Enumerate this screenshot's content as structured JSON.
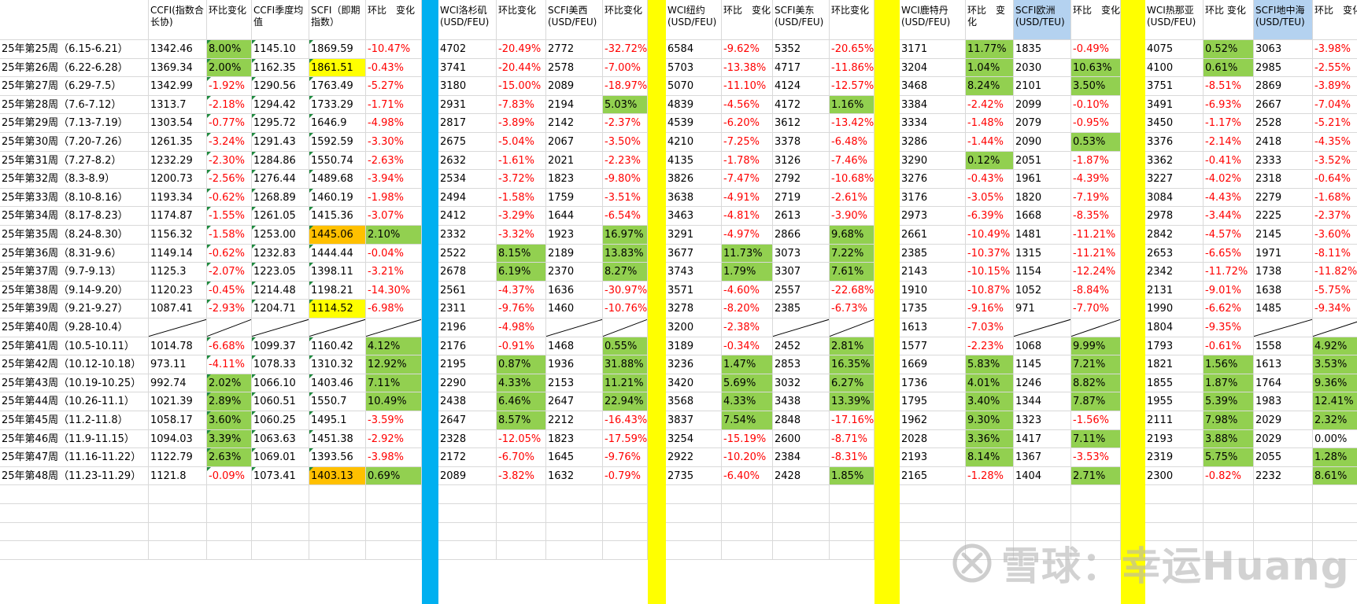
{
  "columns": [
    {
      "label": "",
      "w": 189
    },
    {
      "label": "CCFI(指数合长协)",
      "w": 74
    },
    {
      "label": "环比变化",
      "w": 57
    },
    {
      "label": "CCFI季度均值",
      "w": 73
    },
    {
      "label": "SCFI（即期指数）",
      "w": 72
    },
    {
      "label": "环比　变化",
      "w": 71
    },
    {
      "sep": "#00b0f0",
      "w": 21
    },
    {
      "label": "WCI洛杉矶(USD/FEU)",
      "w": 74
    },
    {
      "label": "环比变化",
      "w": 63
    },
    {
      "label": "SCFI美西(USD/FEU)",
      "w": 72
    },
    {
      "label": "环比变化",
      "w": 57
    },
    {
      "sep": "#ffff00",
      "w": 23
    },
    {
      "label": "WCI纽约(USD/FEU)",
      "w": 71
    },
    {
      "label": "环比　变化",
      "w": 65
    },
    {
      "label": "SCFI美东(USD/FEU)",
      "w": 72
    },
    {
      "label": "环比变化",
      "w": 57
    },
    {
      "sep": "#ffff00",
      "w": 32
    },
    {
      "label": "WCI鹿特丹(USD/FEU)",
      "w": 84
    },
    {
      "label": "环比　变化",
      "w": 61
    },
    {
      "label": "SCFI欧洲(USD/TEU)",
      "w": 73,
      "bg": "lblue"
    },
    {
      "label": "环比　变化",
      "w": 63
    },
    {
      "sep": "#ffff00",
      "w": 31
    },
    {
      "label": "WCI热那亚(USD/FEU)",
      "w": 74
    },
    {
      "label": "环比 变化",
      "w": 64
    },
    {
      "label": "SCFI地中海(USD/TEU)",
      "w": 75,
      "bg": "lblue"
    },
    {
      "label": "环比　变化",
      "w": 66
    }
  ],
  "rows": [
    {
      "week": "25年第25周（6.15-6.21）",
      "vals": [
        "1342.46",
        "8.00%",
        "1145.10",
        "1869.59",
        "-10.47%",
        "4702",
        "-20.49%",
        "2772",
        "-32.72%",
        "6584",
        "-9.62%",
        "5352",
        "-20.65%",
        "3171",
        "11.77%",
        "1835",
        "-0.49%",
        "4075",
        "0.52%",
        "3063",
        "-3.98%"
      ]
    },
    {
      "week": "25年第26周（6.22-6.28）",
      "vals": [
        "1369.34",
        "2.00%",
        "1162.35",
        "1861.51",
        "-0.43%",
        "3741",
        "-20.44%",
        "2578",
        "-7.00%",
        "5703",
        "-13.38%",
        "4717",
        "-11.86%",
        "3204",
        "1.04%",
        "2030",
        "10.63%",
        "4100",
        "0.61%",
        "2985",
        "-2.55%"
      ]
    },
    {
      "week": "25年第27周（6.29-7.5）",
      "vals": [
        "1342.99",
        "-1.92%",
        "1290.56",
        "1763.49",
        "-5.27%",
        "3180",
        "-15.00%",
        "2089",
        "-18.97%",
        "5070",
        "-11.10%",
        "4124",
        "-12.57%",
        "3468",
        "8.24%",
        "2101",
        "3.50%",
        "3751",
        "-8.51%",
        "2869",
        "-3.89%"
      ]
    },
    {
      "week": "25年第28周（7.6-7.12）",
      "vals": [
        "1313.7",
        "-2.18%",
        "1294.42",
        "1733.29",
        "-1.71%",
        "2931",
        "-7.83%",
        "2194",
        "5.03%",
        "4839",
        "-4.56%",
        "4172",
        "1.16%",
        "3384",
        "-2.42%",
        "2099",
        "-0.10%",
        "3491",
        "-6.93%",
        "2667",
        "-7.04%"
      ]
    },
    {
      "week": "25年第29周（7.13-7.19）",
      "vals": [
        "1303.54",
        "-0.77%",
        "1295.72",
        "1646.9",
        "-4.98%",
        "2817",
        "-3.89%",
        "2142",
        "-2.37%",
        "4539",
        "-6.20%",
        "3612",
        "-13.42%",
        "3334",
        "-1.48%",
        "2079",
        "-0.95%",
        "3450",
        "-1.17%",
        "2528",
        "-5.21%"
      ]
    },
    {
      "week": "25年第30周（7.20-7.26）",
      "vals": [
        "1261.35",
        "-3.24%",
        "1291.43",
        "1592.59",
        "-3.30%",
        "2675",
        "-5.04%",
        "2067",
        "-3.50%",
        "4210",
        "-7.25%",
        "3378",
        "-6.48%",
        "3286",
        "-1.44%",
        "2090",
        "0.53%",
        "3376",
        "-2.14%",
        "2418",
        "-4.35%"
      ]
    },
    {
      "week": "25年第31周（7.27-8.2）",
      "vals": [
        "1232.29",
        "-2.30%",
        "1284.86",
        "1550.74",
        "-2.63%",
        "2632",
        "-1.61%",
        "2021",
        "-2.23%",
        "4135",
        "-1.78%",
        "3126",
        "-7.46%",
        "3290",
        "0.12%",
        "2051",
        "-1.87%",
        "3362",
        "-0.41%",
        "2333",
        "-3.52%"
      ]
    },
    {
      "week": "25年第32周（8.3-8.9）",
      "vals": [
        "1200.73",
        "-2.56%",
        "1276.44",
        "1489.68",
        "-3.94%",
        "2534",
        "-3.72%",
        "1823",
        "-9.80%",
        "3826",
        "-7.47%",
        "2792",
        "-10.68%",
        "3276",
        "-0.43%",
        "1961",
        "-4.39%",
        "3227",
        "-4.02%",
        "2318",
        "-0.64%"
      ]
    },
    {
      "week": "25年第33周（8.10-8.16）",
      "vals": [
        "1193.34",
        "-0.62%",
        "1268.89",
        "1460.19",
        "-1.98%",
        "2494",
        "-1.58%",
        "1759",
        "-3.51%",
        "3638",
        "-4.91%",
        "2719",
        "-2.61%",
        "3176",
        "-3.05%",
        "1820",
        "-7.19%",
        "3084",
        "-4.43%",
        "2279",
        "-1.68%"
      ]
    },
    {
      "week": "25年第34周（8.17-8.23）",
      "vals": [
        "1174.87",
        "-1.55%",
        "1261.05",
        "1415.36",
        "-3.07%",
        "2412",
        "-3.29%",
        "1644",
        "-6.54%",
        "3463",
        "-4.81%",
        "2613",
        "-3.90%",
        "2973",
        "-6.39%",
        "1668",
        "-8.35%",
        "2978",
        "-3.44%",
        "2225",
        "-2.37%"
      ]
    },
    {
      "week": "25年第35周（8.24-8.30）",
      "vals": [
        "1156.32",
        "-1.58%",
        "1253.00",
        "1445.06",
        "2.10%",
        "2332",
        "-3.32%",
        "1923",
        "16.97%",
        "3291",
        "-4.97%",
        "2866",
        "9.68%",
        "2661",
        "-10.49%",
        "1481",
        "-11.21%",
        "2842",
        "-4.57%",
        "2145",
        "-3.60%"
      ]
    },
    {
      "week": "25年第36周（8.31-9.6）",
      "vals": [
        "1149.14",
        "-0.62%",
        "1232.83",
        "1444.44",
        "-0.04%",
        "2522",
        "8.15%",
        "2189",
        "13.83%",
        "3677",
        "11.73%",
        "3073",
        "7.22%",
        "2385",
        "-10.37%",
        "1315",
        "-11.21%",
        "2653",
        "-6.65%",
        "1971",
        "-8.11%"
      ]
    },
    {
      "week": "25年第37周（9.7-9.13）",
      "vals": [
        "1125.3",
        "-2.07%",
        "1223.05",
        "1398.11",
        "-3.21%",
        "2678",
        "6.19%",
        "2370",
        "8.27%",
        "3743",
        "1.79%",
        "3307",
        "7.61%",
        "2143",
        "-10.15%",
        "1154",
        "-12.24%",
        "2342",
        "-11.72%",
        "1738",
        "-11.82%"
      ]
    },
    {
      "week": "25年第38周（9.14-9.20）",
      "vals": [
        "1120.23",
        "-0.45%",
        "1214.48",
        "1198.21",
        "-14.30%",
        "2561",
        "-4.37%",
        "1636",
        "-30.97%",
        "3571",
        "-4.60%",
        "2557",
        "-22.68%",
        "1910",
        "-10.87%",
        "1052",
        "-8.84%",
        "2131",
        "-9.01%",
        "1638",
        "-5.75%"
      ]
    },
    {
      "week": "25年第39周（9.21-9.27）",
      "vals": [
        "1087.41",
        "-2.93%",
        "1204.71",
        "1114.52",
        "-6.98%",
        "2311",
        "-9.76%",
        "1460",
        "-10.76%",
        "3278",
        "-8.20%",
        "2385",
        "-6.73%",
        "1735",
        "-9.16%",
        "971",
        "-7.70%",
        "1990",
        "-6.62%",
        "1485",
        "-9.34%"
      ]
    },
    {
      "week": "25年第40周（9.28-10.4）",
      "vals": [
        "",
        "",
        "",
        "",
        "",
        "2196",
        "-4.98%",
        "",
        "",
        "3200",
        "-2.38%",
        "",
        "",
        "1613",
        "-7.03%",
        "",
        "",
        "1804",
        "-9.35%",
        "",
        ""
      ]
    },
    {
      "week": "25年第41周（10.5-10.11）",
      "vals": [
        "1014.78",
        "-6.68%",
        "1099.37",
        "1160.42",
        "4.12%",
        "2176",
        "-0.91%",
        "1468",
        "0.55%",
        "3189",
        "-0.34%",
        "2452",
        "2.81%",
        "1577",
        "-2.23%",
        "1068",
        "9.99%",
        "1793",
        "-0.61%",
        "1558",
        "4.92%"
      ]
    },
    {
      "week": "25年第42周（10.12-10.18）",
      "vals": [
        "973.11",
        "-4.11%",
        "1078.33",
        "1310.32",
        "12.92%",
        "2195",
        "0.87%",
        "1936",
        "31.88%",
        "3236",
        "1.47%",
        "2853",
        "16.35%",
        "1669",
        "5.83%",
        "1145",
        "7.21%",
        "1821",
        "1.56%",
        "1613",
        "3.53%"
      ]
    },
    {
      "week": "25年第43周（10.19-10.25）",
      "vals": [
        "992.74",
        "2.02%",
        "1066.10",
        "1403.46",
        "7.11%",
        "2290",
        "4.33%",
        "2153",
        "11.21%",
        "3420",
        "5.69%",
        "3032",
        "6.27%",
        "1736",
        "4.01%",
        "1246",
        "8.82%",
        "1855",
        "1.87%",
        "1764",
        "9.36%"
      ]
    },
    {
      "week": "25年第44周（10.26-11.1）",
      "vals": [
        "1021.39",
        "2.89%",
        "1060.51",
        "1550.7",
        "10.49%",
        "2438",
        "6.46%",
        "2647",
        "22.94%",
        "3568",
        "4.33%",
        "3438",
        "13.39%",
        "1795",
        "3.40%",
        "1344",
        "7.87%",
        "1955",
        "5.39%",
        "1983",
        "12.41%"
      ]
    },
    {
      "week": "25年第45周（11.2-11.8）",
      "vals": [
        "1058.17",
        "3.60%",
        "1060.25",
        "1495.1",
        "-3.59%",
        "2647",
        "8.57%",
        "2212",
        "-16.43%",
        "3837",
        "7.54%",
        "2848",
        "-17.16%",
        "1962",
        "9.30%",
        "1323",
        "-1.56%",
        "2111",
        "7.98%",
        "2029",
        "2.32%"
      ]
    },
    {
      "week": "25年第46周（11.9-11.15）",
      "vals": [
        "1094.03",
        "3.39%",
        "1063.63",
        "1451.38",
        "-2.92%",
        "2328",
        "-12.05%",
        "1823",
        "-17.59%",
        "3254",
        "-15.19%",
        "2600",
        "-8.71%",
        "2028",
        "3.36%",
        "1417",
        "7.11%",
        "2193",
        "3.88%",
        "2029",
        "0.00%"
      ]
    },
    {
      "week": "25年第47周（11.16-11.22）",
      "vals": [
        "1122.79",
        "2.63%",
        "1069.01",
        "1393.56",
        "-3.98%",
        "2172",
        "-6.70%",
        "1645",
        "-9.76%",
        "2922",
        "-10.20%",
        "2384",
        "-8.31%",
        "2193",
        "8.14%",
        "1367",
        "-3.53%",
        "2319",
        "5.75%",
        "2055",
        "1.28%"
      ]
    },
    {
      "week": "25年第48周（11.23-11.29）",
      "vals": [
        "1121.8",
        "-0.09%",
        "1073.41",
        "1403.13",
        "0.69%",
        "2089",
        "-3.82%",
        "1632",
        "-0.79%",
        "2735",
        "-6.40%",
        "2428",
        "1.85%",
        "2165",
        "-1.28%",
        "1404",
        "2.71%",
        "2300",
        "-0.82%",
        "2232",
        "8.61%"
      ]
    }
  ],
  "colors": {
    "positive": "#92d050",
    "negative_text": "#ff0000",
    "blue_separator": "#00b0f0",
    "yellow_separator": "#ffff00",
    "highlight_yellow": "#ffff00",
    "highlight_orange": "#ffc000",
    "header_blue": "#b4d2f0"
  },
  "highlights": [
    {
      "row": 1,
      "col": 3,
      "bg": "yellow"
    },
    {
      "row": 10,
      "col": 3,
      "bg": "orange"
    },
    {
      "row": 14,
      "col": 3,
      "bg": "yellow"
    },
    {
      "row": 23,
      "col": 3,
      "bg": "orange"
    }
  ],
  "watermark": {
    "text": "雪球：幸运Huang",
    "icon": "snowball-logo-icon"
  }
}
